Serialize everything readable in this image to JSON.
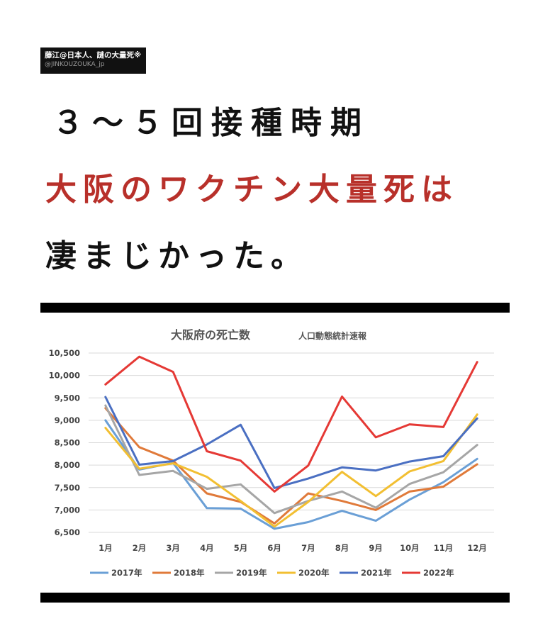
{
  "badge": {
    "name": "藤江@日本人、謎の大量死※",
    "handle": "@JINKOUZOUKA_jp"
  },
  "headline": {
    "line1": "３～５回接種時期",
    "line2": "大阪のワクチン大量死は",
    "line3": "凄まじかった。"
  },
  "colors": {
    "accent_red": "#b8302a",
    "headline_dark": "#111111"
  },
  "chart_data": {
    "type": "line",
    "title": "大阪府の死亡数",
    "subtitle": "人口動態統計速報",
    "xlabel": "",
    "ylabel": "",
    "categories": [
      "1月",
      "2月",
      "3月",
      "4月",
      "5月",
      "6月",
      "7月",
      "8月",
      "9月",
      "10月",
      "11月",
      "12月"
    ],
    "ylim": [
      6500,
      10500
    ],
    "yticks": [
      6500,
      7000,
      7500,
      8000,
      8500,
      9000,
      9500,
      10000,
      10500
    ],
    "ytick_labels": [
      "6,500",
      "7,000",
      "7,500",
      "8,000",
      "8,500",
      "9,000",
      "9,500",
      "10,000",
      "10,500"
    ],
    "grid": true,
    "legend_position": "bottom",
    "series": [
      {
        "name": "2017年",
        "color": "#6a9fd6",
        "values": [
          9000,
          7900,
          8050,
          7040,
          7030,
          6580,
          6730,
          6980,
          6760,
          7230,
          7620,
          8140
        ]
      },
      {
        "name": "2018年",
        "color": "#e07a3a",
        "values": [
          9270,
          8400,
          8100,
          7370,
          7180,
          6700,
          7370,
          7200,
          7000,
          7410,
          7520,
          8020
        ]
      },
      {
        "name": "2019年",
        "color": "#a6a6a6",
        "values": [
          9330,
          7780,
          7870,
          7470,
          7570,
          6930,
          7200,
          7410,
          7050,
          7580,
          7840,
          8450
        ]
      },
      {
        "name": "2020年",
        "color": "#f2bf32",
        "values": [
          8830,
          7920,
          8040,
          7740,
          7200,
          6630,
          7180,
          7850,
          7310,
          7860,
          8090,
          9130
        ]
      },
      {
        "name": "2021年",
        "color": "#4a6fc2",
        "values": [
          9520,
          8010,
          8090,
          8460,
          8900,
          7490,
          7700,
          7950,
          7880,
          8080,
          8200,
          9040
        ]
      },
      {
        "name": "2022年",
        "color": "#e53935",
        "values": [
          9800,
          10420,
          10080,
          8310,
          8100,
          7410,
          7990,
          9530,
          8620,
          8910,
          8850,
          10300
        ]
      }
    ]
  }
}
